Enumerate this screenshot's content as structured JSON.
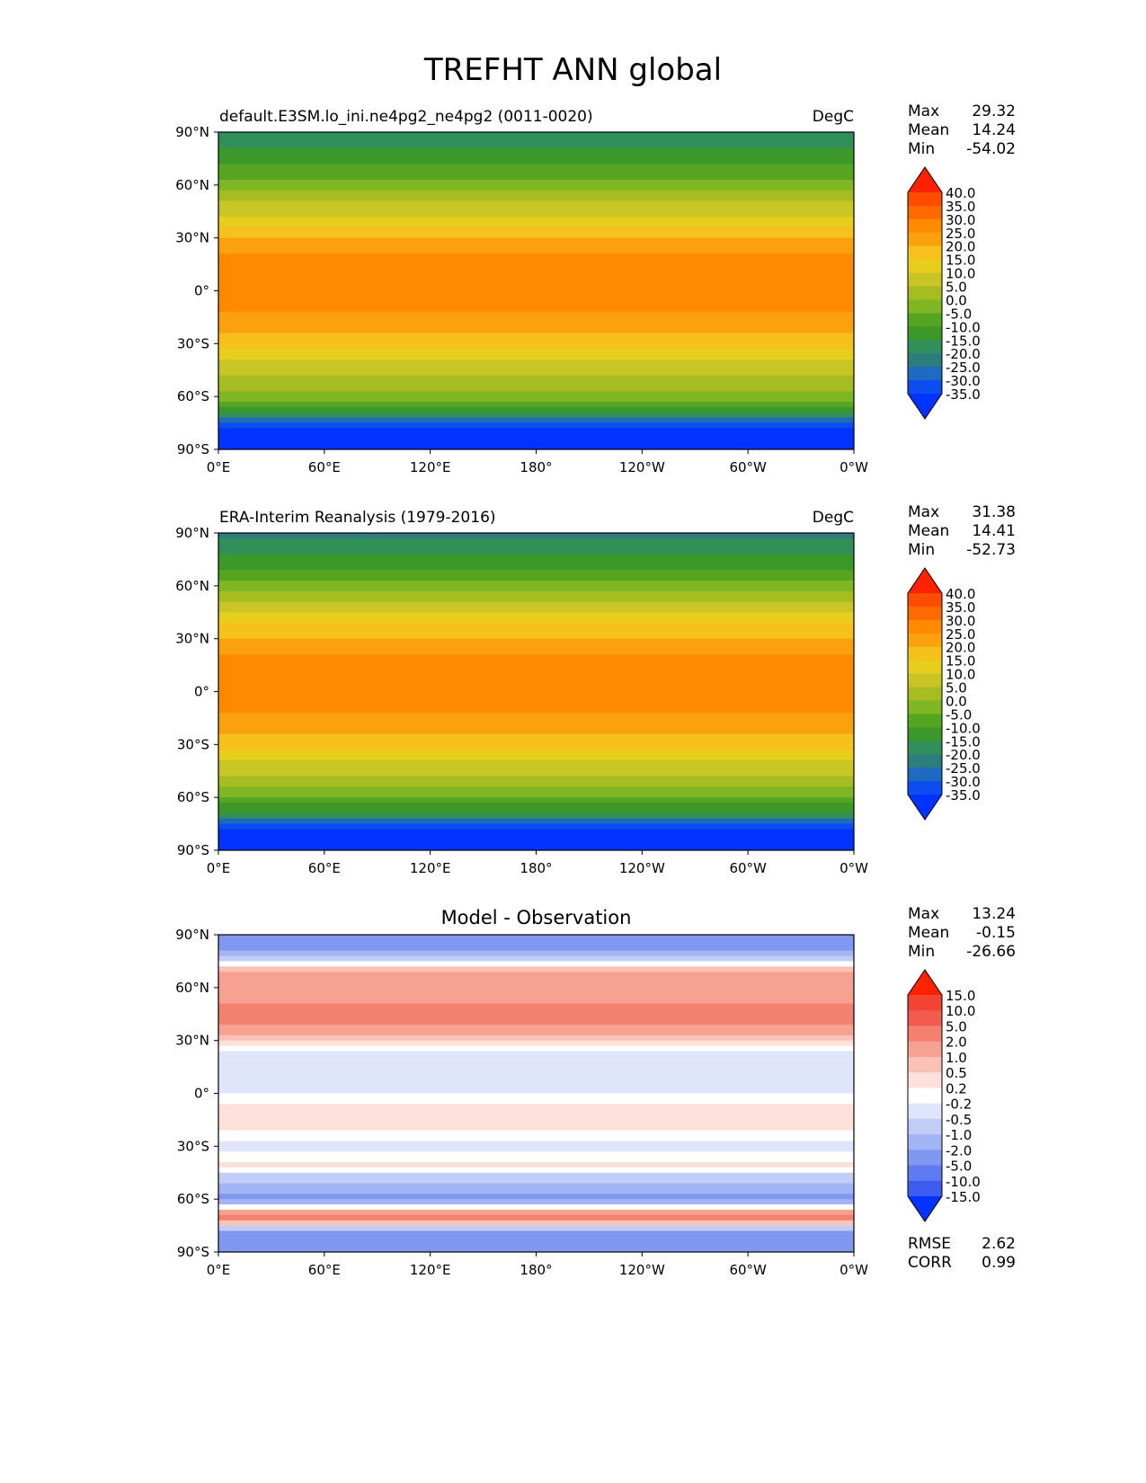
{
  "page": {
    "title": "TREFHT ANN global"
  },
  "axes": {
    "x_ticks": [
      "0°E",
      "60°E",
      "120°E",
      "180°",
      "120°W",
      "60°W",
      "0°W"
    ],
    "y_ticks": [
      "90°N",
      "60°N",
      "30°N",
      "0°",
      "30°S",
      "60°S",
      "90°S"
    ]
  },
  "chart_data": [
    {
      "type": "heatmap",
      "title": "default.E3SM.lo_ini.ne4pg2_ne4pg2 (0011-0020)",
      "units": "DegC",
      "xlabel": "",
      "ylabel": "",
      "xlim": [
        0,
        360
      ],
      "ylim": [
        -90,
        90
      ],
      "stats": [
        {
          "label": "Max",
          "value": "29.32"
        },
        {
          "label": "Mean",
          "value": "14.24"
        },
        {
          "label": "Min",
          "value": "-54.02"
        }
      ],
      "colorbar": {
        "levels": [
          "40.0",
          "35.0",
          "30.0",
          "25.0",
          "20.0",
          "15.0",
          "10.0",
          "5.0",
          "0.0",
          "-5.0",
          "-10.0",
          "-15.0",
          "-20.0",
          "-25.0",
          "-30.0",
          "-35.0"
        ],
        "colors": [
          "#ff2200",
          "#ff4d00",
          "#ff6a00",
          "#ff8a00",
          "#fba10d",
          "#f6c11c",
          "#e8ce1c",
          "#c8c524",
          "#a6bd22",
          "#7fb623",
          "#56a520",
          "#3c9829",
          "#318f59",
          "#2e7d7d",
          "#1e6ac0",
          "#0b4dee",
          "#0033ff"
        ]
      },
      "latitude_profile": {
        "lat": [
          90,
          80,
          70,
          60,
          50,
          40,
          30,
          20,
          10,
          0,
          -10,
          -20,
          -30,
          -40,
          -50,
          -60,
          -70,
          -80,
          -90
        ],
        "values": [
          -20,
          -15,
          -9,
          -2,
          5,
          12,
          20,
          25,
          27,
          27,
          26,
          23,
          17,
          10,
          4,
          -3,
          -16,
          -42,
          -50
        ]
      }
    },
    {
      "type": "heatmap",
      "title": "ERA-Interim Reanalysis (1979-2016)",
      "units": "DegC",
      "xlabel": "",
      "ylabel": "",
      "xlim": [
        0,
        360
      ],
      "ylim": [
        -90,
        90
      ],
      "stats": [
        {
          "label": "Max",
          "value": "31.38"
        },
        {
          "label": "Mean",
          "value": "14.41"
        },
        {
          "label": "Min",
          "value": "-52.73"
        }
      ],
      "colorbar": {
        "levels": [
          "40.0",
          "35.0",
          "30.0",
          "25.0",
          "20.0",
          "15.0",
          "10.0",
          "5.0",
          "0.0",
          "-5.0",
          "-10.0",
          "-15.0",
          "-20.0",
          "-25.0",
          "-30.0",
          "-35.0"
        ],
        "colors": [
          "#ff2200",
          "#ff4d00",
          "#ff6a00",
          "#ff8a00",
          "#fba10d",
          "#f6c11c",
          "#e8ce1c",
          "#c8c524",
          "#a6bd22",
          "#7fb623",
          "#56a520",
          "#3c9829",
          "#318f59",
          "#2e7d7d",
          "#1e6ac0",
          "#0b4dee",
          "#0033ff"
        ]
      },
      "latitude_profile": {
        "lat": [
          90,
          80,
          70,
          60,
          50,
          40,
          30,
          20,
          10,
          0,
          -10,
          -20,
          -30,
          -40,
          -50,
          -60,
          -70,
          -80,
          -90
        ],
        "values": [
          -22,
          -16,
          -10,
          -3,
          5,
          13,
          21,
          25,
          27,
          27,
          26,
          23,
          17,
          10,
          4,
          -4,
          -18,
          -44,
          -50
        ]
      }
    },
    {
      "type": "heatmap",
      "title": "Model - Observation",
      "units": "",
      "xlabel": "",
      "ylabel": "",
      "xlim": [
        0,
        360
      ],
      "ylim": [
        -90,
        90
      ],
      "stats": [
        {
          "label": "Max",
          "value": "13.24"
        },
        {
          "label": "Mean",
          "value": "-0.15"
        },
        {
          "label": "Min",
          "value": "-26.66"
        }
      ],
      "colorbar": {
        "levels": [
          "15.0",
          "10.0",
          "5.0",
          "2.0",
          "1.0",
          "0.5",
          "0.2",
          "-0.2",
          "-0.5",
          "-1.0",
          "-2.0",
          "-5.0",
          "-10.0",
          "-15.0"
        ],
        "colors": [
          "#ff2200",
          "#f24333",
          "#f25c4f",
          "#f4806f",
          "#f7a192",
          "#fac2b6",
          "#fde1da",
          "#ffffff",
          "#dfe5fb",
          "#c2cdf7",
          "#a3b4f4",
          "#8198f0",
          "#5e7bef",
          "#3d5df1",
          "#0033ff"
        ]
      },
      "latitude_profile": {
        "lat": [
          90,
          80,
          70,
          60,
          50,
          40,
          30,
          20,
          10,
          0,
          -10,
          -20,
          -30,
          -40,
          -50,
          -60,
          -70,
          -80,
          -90
        ],
        "values": [
          -3,
          -2,
          1,
          1.5,
          2,
          2,
          0.5,
          -0.5,
          -0.3,
          -0.2,
          0.5,
          0.3,
          -0.5,
          0.4,
          -1,
          -2.5,
          3,
          -3,
          -4
        ]
      },
      "footer_stats": [
        {
          "label": "RMSE",
          "value": "2.62"
        },
        {
          "label": "CORR",
          "value": "0.99"
        }
      ]
    }
  ]
}
